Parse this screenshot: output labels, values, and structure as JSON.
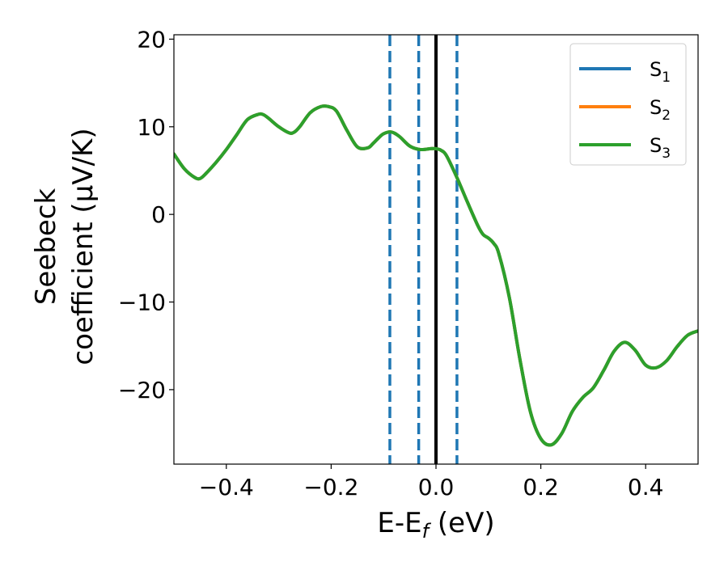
{
  "chart_data": {
    "type": "line",
    "xlabel": {
      "main": "E-E",
      "sub": "f",
      "unit": " (eV)"
    },
    "ylabel": {
      "line1": "Seebeck",
      "line2": "coefficient  (μV/K)"
    },
    "xlim": [
      -0.5,
      0.5
    ],
    "ylim": [
      -28.5,
      20.5
    ],
    "xticks": [
      -0.4,
      -0.2,
      0.0,
      0.2,
      0.4
    ],
    "xtick_labels": [
      "−0.4",
      "−0.2",
      "0.0",
      "0.2",
      "0.4"
    ],
    "yticks": [
      -20,
      -10,
      0,
      10,
      20
    ],
    "ytick_labels": [
      "−20",
      "−10",
      "0",
      "10",
      "20"
    ],
    "grid": false,
    "legend_position": "top-right",
    "vlines": [
      {
        "x": -0.088,
        "style": "dashed",
        "color": "#1f77b4"
      },
      {
        "x": -0.033,
        "style": "dashed",
        "color": "#1f77b4"
      },
      {
        "x": 0.0,
        "style": "solid",
        "color": "#000000"
      },
      {
        "x": 0.04,
        "style": "dashed",
        "color": "#1f77b4"
      }
    ],
    "x": [
      -0.5,
      -0.48,
      -0.46,
      -0.45,
      -0.44,
      -0.42,
      -0.4,
      -0.38,
      -0.36,
      -0.34,
      -0.33,
      -0.32,
      -0.3,
      -0.28,
      -0.27,
      -0.26,
      -0.24,
      -0.22,
      -0.205,
      -0.19,
      -0.17,
      -0.15,
      -0.13,
      -0.12,
      -0.11,
      -0.1,
      -0.085,
      -0.07,
      -0.05,
      -0.03,
      -0.01,
      0.0,
      0.01,
      0.02,
      0.04,
      0.06,
      0.08,
      0.09,
      0.1,
      0.11,
      0.12,
      0.14,
      0.16,
      0.18,
      0.2,
      0.22,
      0.24,
      0.26,
      0.28,
      0.3,
      0.32,
      0.34,
      0.36,
      0.38,
      0.4,
      0.42,
      0.44,
      0.46,
      0.48,
      0.5
    ],
    "series": [
      {
        "name": "S1",
        "label_main": "S",
        "label_sub": "1",
        "color": "#1f77b4",
        "values": [
          6.9,
          5.2,
          4.2,
          4.1,
          4.6,
          5.9,
          7.4,
          9.1,
          10.8,
          11.4,
          11.4,
          11.0,
          10.0,
          9.3,
          9.4,
          10.0,
          11.6,
          12.3,
          12.3,
          11.8,
          9.6,
          7.7,
          7.6,
          8.1,
          8.7,
          9.2,
          9.4,
          8.9,
          7.8,
          7.4,
          7.5,
          7.5,
          7.3,
          6.7,
          4.2,
          1.4,
          -1.3,
          -2.3,
          -2.7,
          -3.3,
          -4.5,
          -9.5,
          -16.5,
          -22.5,
          -25.6,
          -26.3,
          -25.0,
          -22.5,
          -20.9,
          -19.8,
          -17.8,
          -15.6,
          -14.6,
          -15.5,
          -17.2,
          -17.5,
          -16.7,
          -15.1,
          -13.8,
          -13.3
        ]
      },
      {
        "name": "S2",
        "label_main": "S",
        "label_sub": "2",
        "color": "#ff7f0e",
        "values": [
          6.9,
          5.2,
          4.2,
          4.1,
          4.6,
          5.9,
          7.4,
          9.1,
          10.8,
          11.4,
          11.4,
          11.0,
          10.0,
          9.3,
          9.4,
          10.0,
          11.6,
          12.3,
          12.3,
          11.8,
          9.6,
          7.7,
          7.6,
          8.1,
          8.7,
          9.2,
          9.4,
          8.9,
          7.8,
          7.4,
          7.5,
          7.5,
          7.3,
          6.7,
          4.2,
          1.4,
          -1.3,
          -2.3,
          -2.7,
          -3.3,
          -4.5,
          -9.5,
          -16.5,
          -22.5,
          -25.6,
          -26.3,
          -25.0,
          -22.5,
          -20.9,
          -19.8,
          -17.8,
          -15.6,
          -14.6,
          -15.5,
          -17.2,
          -17.5,
          -16.7,
          -15.1,
          -13.8,
          -13.3
        ]
      },
      {
        "name": "S3",
        "label_main": "S",
        "label_sub": "3",
        "color": "#2ca02c",
        "values": [
          6.9,
          5.2,
          4.2,
          4.1,
          4.6,
          5.9,
          7.4,
          9.1,
          10.8,
          11.4,
          11.4,
          11.0,
          10.0,
          9.3,
          9.4,
          10.0,
          11.6,
          12.3,
          12.3,
          11.8,
          9.6,
          7.7,
          7.6,
          8.1,
          8.7,
          9.2,
          9.4,
          8.9,
          7.8,
          7.4,
          7.5,
          7.5,
          7.3,
          6.7,
          4.2,
          1.4,
          -1.3,
          -2.3,
          -2.7,
          -3.3,
          -4.5,
          -9.5,
          -16.5,
          -22.5,
          -25.6,
          -26.3,
          -25.0,
          -22.5,
          -20.9,
          -19.8,
          -17.8,
          -15.6,
          -14.6,
          -15.5,
          -17.2,
          -17.5,
          -16.7,
          -15.1,
          -13.8,
          -13.3
        ]
      }
    ]
  }
}
